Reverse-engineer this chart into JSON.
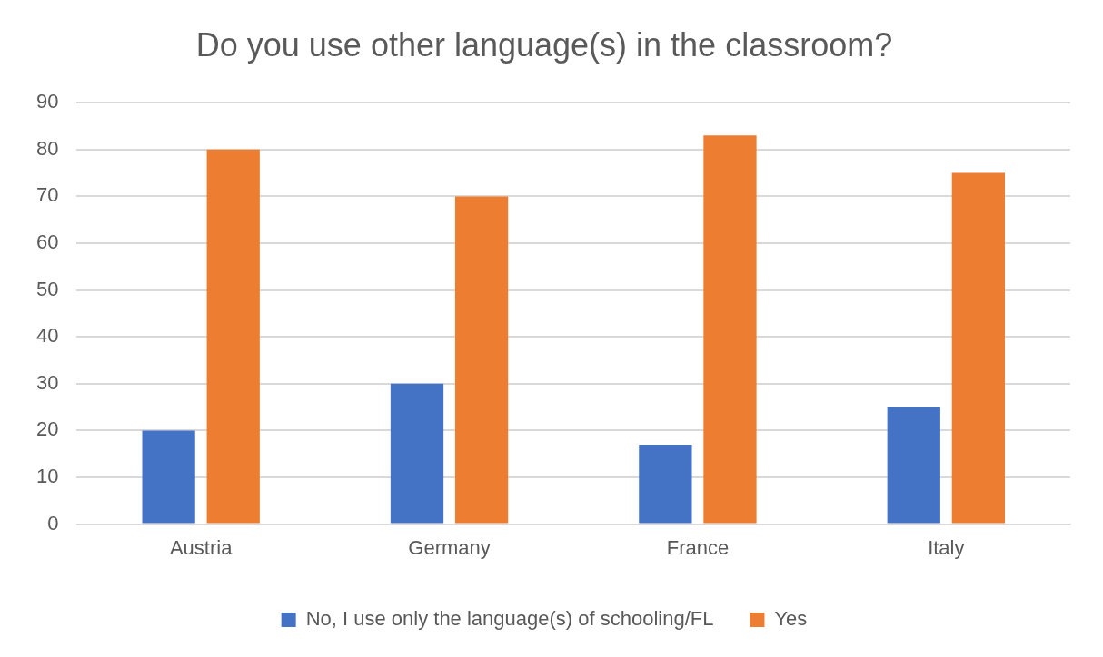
{
  "chart_data": {
    "type": "bar",
    "title": "Do you use other language(s) in the classroom?",
    "categories": [
      "Austria",
      "Germany",
      "France",
      "Italy"
    ],
    "series": [
      {
        "name": "No, I use only the language(s) of schooling/FL",
        "color": "#4472c4",
        "values": [
          20,
          30,
          17,
          25
        ]
      },
      {
        "name": "Yes",
        "color": "#ed7d31",
        "values": [
          80,
          70,
          83,
          75
        ]
      }
    ],
    "ylim": [
      0,
      90
    ],
    "yticks": [
      0,
      10,
      20,
      30,
      40,
      50,
      60,
      70,
      80,
      90
    ],
    "grid": "y",
    "legend": "bottom"
  }
}
